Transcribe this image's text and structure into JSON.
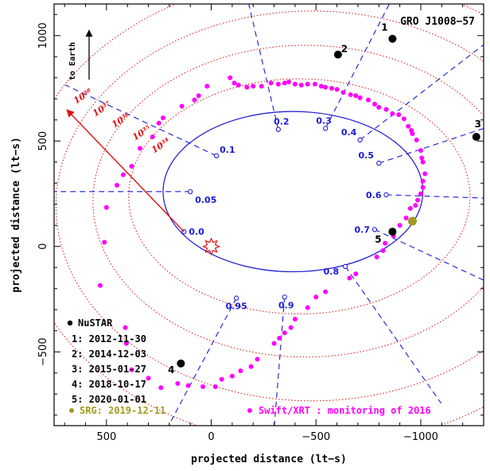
{
  "chart_data": {
    "type": "scatter",
    "title": "GRO J1008−57",
    "xlabel": "projected distance (lt−s)",
    "ylabel": "projected distance (lt−s)",
    "xlim": [
      750,
      -1300
    ],
    "ylim": [
      1150,
      -850
    ],
    "x_ticks": [
      500,
      0,
      -500,
      -1000
    ],
    "x_tick_labels": [
      "500",
      "0",
      "−500",
      "−1000"
    ],
    "y_ticks": [
      -500,
      0,
      500,
      1000
    ],
    "y_tick_labels": [
      "−500",
      "0",
      "500",
      "1000"
    ],
    "earth_label": "to Earth",
    "orbit": {
      "center": [
        -390,
        260
      ],
      "semi_axes": [
        620,
        380
      ],
      "color": "#1a1ad6"
    },
    "orbit_phases": [
      {
        "label": "0.0",
        "x": 130,
        "y": 70
      },
      {
        "label": "0.05",
        "x": 100,
        "y": 260
      },
      {
        "label": "0.1",
        "x": -25,
        "y": 430
      },
      {
        "label": "0.2",
        "x": -320,
        "y": 555
      },
      {
        "label": "0.3",
        "x": -545,
        "y": 560
      },
      {
        "label": "0.4",
        "x": -710,
        "y": 505
      },
      {
        "label": "0.5",
        "x": -800,
        "y": 395
      },
      {
        "label": "0.6",
        "x": -835,
        "y": 245
      },
      {
        "label": "0.7",
        "x": -780,
        "y": 80
      },
      {
        "label": "0.8",
        "x": -640,
        "y": -95
      },
      {
        "label": "0.9",
        "x": -350,
        "y": -240
      },
      {
        "label": "0.95",
        "x": -120,
        "y": -245
      }
    ],
    "luminosity_contours": {
      "labels": [
        "10³⁴",
        "10³⁵",
        "10³⁶",
        "10³⁷",
        "10³⁸"
      ],
      "color": "#e01010"
    },
    "companion_marker": {
      "x": 0,
      "y": 0,
      "color": "#e01010"
    },
    "nustar": {
      "name": "NuSTAR",
      "color": "#000000",
      "points": [
        {
          "id": "1",
          "date": "2012-11-30",
          "x": -865,
          "y": 985
        },
        {
          "id": "2",
          "date": "2014-12-03",
          "x": -605,
          "y": 910
        },
        {
          "id": "3",
          "date": "2015-01-27",
          "x": -1265,
          "y": 520
        },
        {
          "id": "4",
          "date": "2018-10-17",
          "x": 145,
          "y": -555
        },
        {
          "id": "5",
          "date": "2020-01-01",
          "x": -865,
          "y": 70
        }
      ]
    },
    "srg": {
      "name": "SRG: 2019-12-11",
      "color": "#a09a20",
      "x": -960,
      "y": 120
    },
    "swift": {
      "name": "Swift/XRT : monitoring of 2016",
      "color": "#ff00ff",
      "points": [
        [
          -20,
          -665
        ],
        [
          -50,
          -630
        ],
        [
          -100,
          -615
        ],
        [
          -140,
          -590
        ],
        [
          -190,
          -570
        ],
        [
          -220,
          -535
        ],
        [
          -300,
          -460
        ],
        [
          -325,
          -435
        ],
        [
          -350,
          -410
        ],
        [
          -380,
          -385
        ],
        [
          -400,
          -345
        ],
        [
          -460,
          -290
        ],
        [
          -500,
          -240
        ],
        [
          -545,
          -215
        ],
        [
          -660,
          -150
        ],
        [
          -690,
          -130
        ],
        [
          -790,
          -50
        ],
        [
          -820,
          -20
        ],
        [
          -830,
          15
        ],
        [
          -870,
          50
        ],
        [
          -900,
          100
        ],
        [
          -930,
          135
        ],
        [
          -950,
          180
        ],
        [
          -975,
          195
        ],
        [
          -985,
          220
        ],
        [
          -1000,
          250
        ],
        [
          -1010,
          280
        ],
        [
          -1010,
          310
        ],
        [
          -1020,
          345
        ],
        [
          -1010,
          400
        ],
        [
          -1005,
          420
        ],
        [
          -1000,
          455
        ],
        [
          -980,
          505
        ],
        [
          -960,
          535
        ],
        [
          -955,
          550
        ],
        [
          -940,
          570
        ],
        [
          -920,
          605
        ],
        [
          -895,
          625
        ],
        [
          -865,
          630
        ],
        [
          -835,
          650
        ],
        [
          -800,
          660
        ],
        [
          -780,
          675
        ],
        [
          -750,
          695
        ],
        [
          -710,
          705
        ],
        [
          -690,
          715
        ],
        [
          -665,
          720
        ],
        [
          -630,
          730
        ],
        [
          -600,
          745
        ],
        [
          -575,
          750
        ],
        [
          -545,
          755
        ],
        [
          -525,
          760
        ],
        [
          -495,
          770
        ],
        [
          -460,
          770
        ],
        [
          -430,
          765
        ],
        [
          -400,
          770
        ],
        [
          -370,
          780
        ],
        [
          -350,
          775
        ],
        [
          -320,
          770
        ],
        [
          -285,
          775
        ],
        [
          -240,
          760
        ],
        [
          -200,
          760
        ],
        [
          -170,
          755
        ],
        [
          -130,
          765
        ],
        [
          -110,
          775
        ],
        [
          -90,
          800
        ],
        [
          20,
          760
        ],
        [
          60,
          715
        ],
        [
          80,
          695
        ],
        [
          140,
          665
        ],
        [
          230,
          610
        ],
        [
          250,
          585
        ],
        [
          280,
          520
        ],
        [
          340,
          465
        ],
        [
          380,
          380
        ],
        [
          420,
          340
        ],
        [
          450,
          290
        ],
        [
          500,
          185
        ],
        [
          510,
          20
        ],
        [
          530,
          -185
        ],
        [
          405,
          -460
        ],
        [
          410,
          -385
        ],
        [
          380,
          -585
        ],
        [
          300,
          -625
        ],
        [
          240,
          -670
        ],
        [
          160,
          -650
        ],
        [
          110,
          -660
        ],
        [
          40,
          -665
        ]
      ]
    }
  }
}
